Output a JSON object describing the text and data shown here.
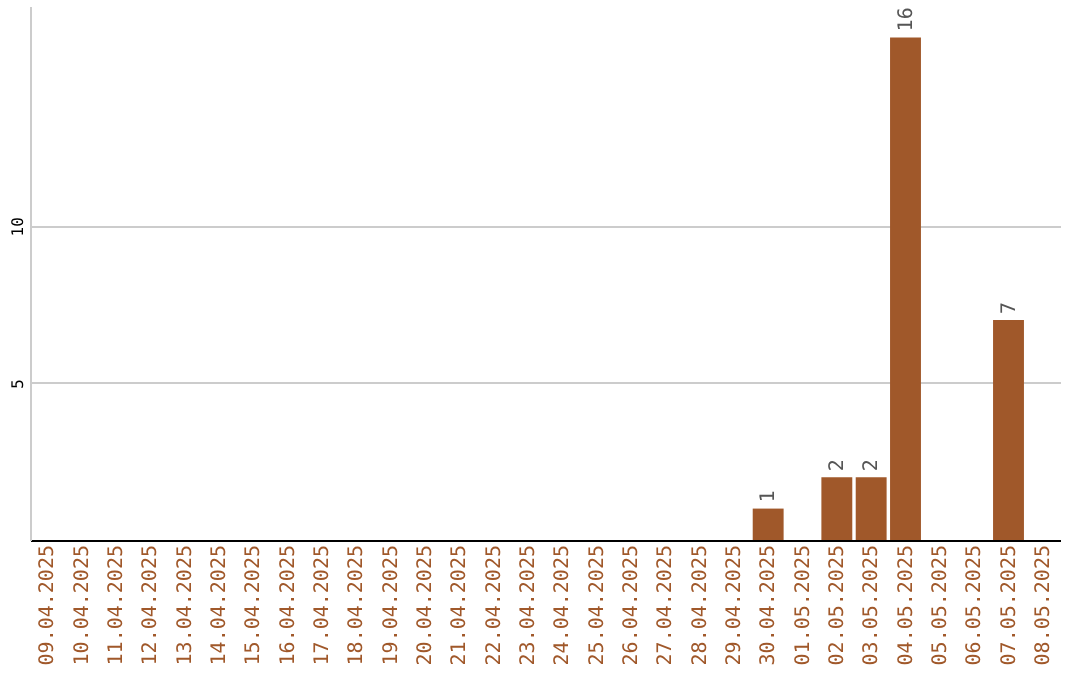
{
  "chart_data": {
    "type": "bar",
    "categories": [
      "09.04.2025",
      "10.04.2025",
      "11.04.2025",
      "12.04.2025",
      "13.04.2025",
      "14.04.2025",
      "15.04.2025",
      "16.04.2025",
      "17.04.2025",
      "18.04.2025",
      "19.04.2025",
      "20.04.2025",
      "21.04.2025",
      "22.04.2025",
      "23.04.2025",
      "24.04.2025",
      "25.04.2025",
      "26.04.2025",
      "27.04.2025",
      "28.04.2025",
      "29.04.2025",
      "30.04.2025",
      "01.05.2025",
      "02.05.2025",
      "03.05.2025",
      "04.05.2025",
      "05.05.2025",
      "06.05.2025",
      "07.05.2025",
      "08.05.2025"
    ],
    "values": [
      0,
      0,
      0,
      0,
      0,
      0,
      0,
      0,
      0,
      0,
      0,
      0,
      0,
      0,
      0,
      0,
      0,
      0,
      0,
      0,
      0,
      1,
      0,
      2,
      2,
      16,
      0,
      0,
      7,
      0
    ],
    "value_labels": [
      null,
      null,
      null,
      null,
      null,
      null,
      null,
      null,
      null,
      null,
      null,
      null,
      null,
      null,
      null,
      null,
      null,
      null,
      null,
      null,
      null,
      "1",
      null,
      "2",
      "2",
      "16",
      null,
      null,
      "7",
      null
    ],
    "color": "#a0582a",
    "ylim": [
      0,
      17
    ],
    "yticks": [
      5,
      10
    ],
    "grid": "y"
  }
}
